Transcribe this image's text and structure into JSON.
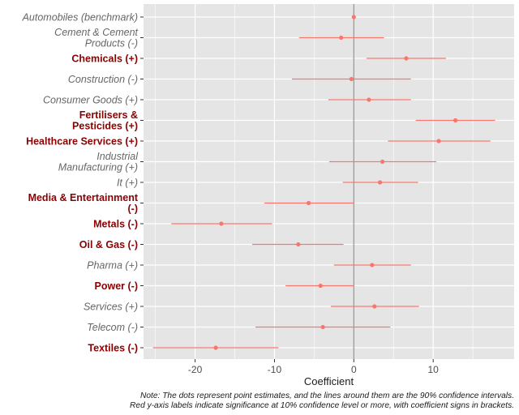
{
  "chart_data": {
    "type": "scatter",
    "subtype": "coefficient-plot",
    "title": "",
    "xlabel": "Coefficient",
    "ylabel": "",
    "xlim": [
      -26.5,
      20.2
    ],
    "xticks": [
      -20,
      -10,
      0,
      10
    ],
    "xtick_labels": [
      "-20",
      "-10",
      "0",
      "10"
    ],
    "grid": true,
    "reference_line_x": 0,
    "colors": {
      "panel": "#e5e5e5",
      "grid": "#ffffff",
      "point": "#f8766d",
      "reference": "#999999",
      "label_plain": "#666666",
      "label_significant": "#8b0000"
    },
    "rows": [
      {
        "lines": [
          "Automobiles (benchmark)"
        ],
        "estimate": 0.0,
        "low": 0.0,
        "high": 0.0,
        "significant": false
      },
      {
        "lines": [
          "Cement & Cement",
          "Products (-)"
        ],
        "estimate": -1.6,
        "low": -6.9,
        "high": 3.8,
        "significant": false
      },
      {
        "lines": [
          "Chemicals (+)"
        ],
        "estimate": 6.6,
        "low": 1.6,
        "high": 11.6,
        "significant": true
      },
      {
        "lines": [
          "Construction (-)"
        ],
        "estimate": -0.3,
        "low": -7.8,
        "high": 7.2,
        "significant": false
      },
      {
        "lines": [
          "Consumer Goods (+)"
        ],
        "estimate": 1.9,
        "low": -3.2,
        "high": 7.2,
        "significant": false
      },
      {
        "lines": [
          "Fertilisers &",
          "Pesticides (+)"
        ],
        "estimate": 12.8,
        "low": 7.8,
        "high": 17.8,
        "significant": true
      },
      {
        "lines": [
          "Healthcare Services (+)"
        ],
        "estimate": 10.7,
        "low": 4.3,
        "high": 17.2,
        "significant": true
      },
      {
        "lines": [
          "Industrial",
          "Manufacturing (+)"
        ],
        "estimate": 3.6,
        "low": -3.1,
        "high": 10.4,
        "significant": false
      },
      {
        "lines": [
          "It (+)"
        ],
        "estimate": 3.3,
        "low": -1.4,
        "high": 8.1,
        "significant": false
      },
      {
        "lines": [
          "Media & Entertainment",
          "(-)"
        ],
        "estimate": -5.7,
        "low": -11.3,
        "high": 0.0,
        "significant": true
      },
      {
        "lines": [
          "Metals (-)"
        ],
        "estimate": -16.7,
        "low": -23.0,
        "high": -10.3,
        "significant": true
      },
      {
        "lines": [
          "Oil & Gas (-)"
        ],
        "estimate": -7.0,
        "low": -12.8,
        "high": -1.3,
        "significant": true
      },
      {
        "lines": [
          "Pharma (+)"
        ],
        "estimate": 2.3,
        "low": -2.5,
        "high": 7.2,
        "significant": false
      },
      {
        "lines": [
          "Power (-)"
        ],
        "estimate": -4.2,
        "low": -8.6,
        "high": 0.0,
        "significant": true
      },
      {
        "lines": [
          "Services (+)"
        ],
        "estimate": 2.6,
        "low": -2.9,
        "high": 8.2,
        "significant": false
      },
      {
        "lines": [
          "Telecom (-)"
        ],
        "estimate": -3.9,
        "low": -12.4,
        "high": 4.6,
        "significant": false
      },
      {
        "lines": [
          "Textiles (-)"
        ],
        "estimate": -17.4,
        "low": -25.3,
        "high": -9.5,
        "significant": true
      }
    ]
  },
  "note": {
    "line1": "Note: The dots represent point estimates, and the lines around them are the 90% confidence intervals.",
    "line2": "Red y-axis labels indicate significance at 10% confidence level or more, with coefficient signs in brackets."
  }
}
